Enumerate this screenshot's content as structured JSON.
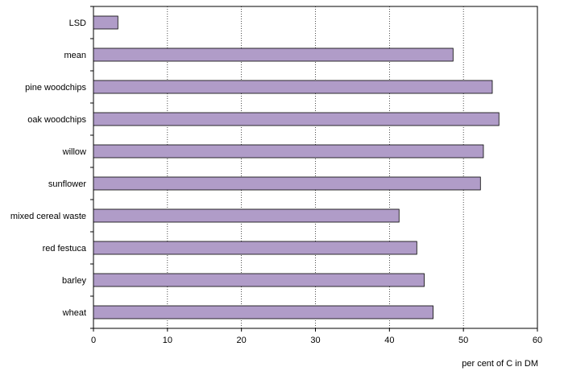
{
  "chart_data": {
    "type": "bar",
    "orientation": "horizontal",
    "title": "",
    "xlabel": "per cent of C in DM",
    "ylabel": "",
    "categories": [
      "LSD",
      "mean",
      "pine woodchips",
      "oak woodchips",
      "willow",
      "sunflower",
      "mixed cereal waste",
      "red festuca",
      "barley",
      "wheat"
    ],
    "values": [
      3.3,
      48.6,
      53.9,
      54.8,
      52.7,
      52.3,
      41.3,
      43.7,
      44.7,
      45.9
    ],
    "xlim": [
      0,
      60
    ],
    "xticks": [
      "0",
      "10",
      "20",
      "30",
      "40",
      "50",
      "60"
    ],
    "grid": "vertical dotted",
    "legend": "none",
    "colors": {
      "bar_fill": "#b09cc8",
      "bar_stroke": "#000000",
      "grid": "#000000",
      "frame": "#000000"
    }
  }
}
